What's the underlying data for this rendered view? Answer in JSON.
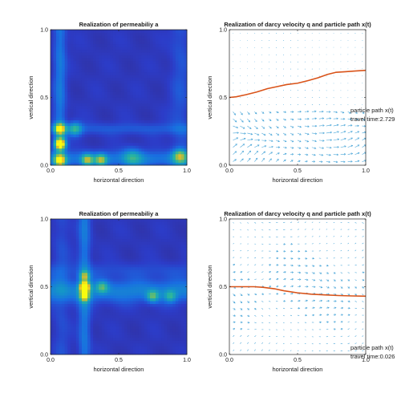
{
  "figure": {
    "background": "#ffffff"
  },
  "chart_data": [
    {
      "type": "heatmap",
      "title": "Realization of permeabiliy a",
      "xlabel": "horizontal direction",
      "ylabel": "vertical direction",
      "xlim": [
        0,
        1
      ],
      "ylim": [
        0,
        1
      ],
      "xticks": [
        "0.0",
        "0.5",
        "1.0"
      ],
      "yticks": [
        "0.0",
        "0.5",
        "1.0"
      ],
      "colormap": "parula",
      "background_level": 0.12,
      "hotspots": [
        {
          "x": 0.07,
          "y": 0.16,
          "intensity": 1.0,
          "spread": 0.028
        },
        {
          "x": 0.07,
          "y": 0.27,
          "intensity": 0.75,
          "spread": 0.028
        },
        {
          "x": 0.07,
          "y": 0.04,
          "intensity": 0.6,
          "spread": 0.028
        },
        {
          "x": 0.27,
          "y": 0.04,
          "intensity": 0.55,
          "spread": 0.03
        },
        {
          "x": 0.37,
          "y": 0.04,
          "intensity": 0.5,
          "spread": 0.03
        },
        {
          "x": 0.18,
          "y": 0.27,
          "intensity": 0.4,
          "spread": 0.035
        },
        {
          "x": 0.95,
          "y": 0.07,
          "intensity": 0.45,
          "spread": 0.035
        },
        {
          "x": 0.6,
          "y": 0.06,
          "intensity": 0.3,
          "spread": 0.05
        }
      ],
      "bands": [
        {
          "axis": "x",
          "at": 0.07,
          "intensity": 0.22,
          "spread": 0.03
        },
        {
          "axis": "y",
          "at": 0.05,
          "intensity": 0.22,
          "spread": 0.04
        },
        {
          "axis": "y",
          "at": 0.27,
          "intensity": 0.12,
          "spread": 0.03
        },
        {
          "axis": "x",
          "at": 0.95,
          "intensity": 0.1,
          "spread": 0.05
        }
      ]
    },
    {
      "type": "quiver",
      "title": "Realization of darcy velocity q and particle path x(t)",
      "xlabel": "horizontal direction",
      "ylabel": "vertical direction",
      "xlim": [
        0,
        1
      ],
      "ylim": [
        0,
        1
      ],
      "xticks": [
        "0.0",
        "0.5",
        "1.0"
      ],
      "yticks": [
        "0.0",
        "0.5",
        "1.0"
      ],
      "arrow_color": "#4aa6d8",
      "path_color": "#d95319",
      "path": {
        "x": [
          0.0,
          0.05,
          0.12,
          0.2,
          0.28,
          0.35,
          0.42,
          0.5,
          0.58,
          0.65,
          0.72,
          0.78,
          0.85,
          0.92,
          1.0
        ],
        "y": [
          0.5,
          0.505,
          0.52,
          0.54,
          0.565,
          0.58,
          0.595,
          0.605,
          0.625,
          0.645,
          0.67,
          0.685,
          0.69,
          0.695,
          0.7
        ]
      },
      "annotation_lines": [
        "particle path x(t)",
        "travel time:2.729"
      ],
      "flow": {
        "focus_y": 0.2,
        "focus_x": 0.15,
        "mag_low": 1.0,
        "mag_high": 0.25
      }
    },
    {
      "type": "heatmap",
      "title": "Realization of permeabiliy a",
      "xlabel": "horizontal direction",
      "ylabel": "vertical direction",
      "xlim": [
        0,
        1
      ],
      "ylim": [
        0,
        1
      ],
      "xticks": [
        "0.0",
        "0.5",
        "1.0"
      ],
      "yticks": [
        "0.0",
        "0.5",
        "1.0"
      ],
      "colormap": "parula",
      "background_level": 0.12,
      "hotspots": [
        {
          "x": 0.25,
          "y": 0.5,
          "intensity": 1.0,
          "spread": 0.025
        },
        {
          "x": 0.25,
          "y": 0.43,
          "intensity": 0.55,
          "spread": 0.025
        },
        {
          "x": 0.25,
          "y": 0.58,
          "intensity": 0.45,
          "spread": 0.025
        },
        {
          "x": 0.38,
          "y": 0.5,
          "intensity": 0.35,
          "spread": 0.03
        },
        {
          "x": 0.75,
          "y": 0.43,
          "intensity": 0.4,
          "spread": 0.03
        },
        {
          "x": 0.88,
          "y": 0.43,
          "intensity": 0.3,
          "spread": 0.03
        }
      ],
      "bands": [
        {
          "axis": "y",
          "at": 0.47,
          "intensity": 0.25,
          "spread": 0.06
        },
        {
          "axis": "x",
          "at": 0.25,
          "intensity": 0.22,
          "spread": 0.03
        },
        {
          "axis": "x",
          "at": 0.08,
          "intensity": 0.08,
          "spread": 0.04
        },
        {
          "axis": "y",
          "at": 0.62,
          "intensity": 0.08,
          "spread": 0.04
        }
      ]
    },
    {
      "type": "quiver",
      "title": "Realization of darcy velocity q and particle path x(t)",
      "xlabel": "horizontal direction",
      "ylabel": "vertical direction",
      "xlim": [
        0,
        1
      ],
      "ylim": [
        0,
        1
      ],
      "xticks": [
        "0.0",
        "0.5",
        "1.0"
      ],
      "yticks": [
        "0.0",
        "0.5",
        "1.0"
      ],
      "arrow_color": "#4aa6d8",
      "path_color": "#d95319",
      "path": {
        "x": [
          0.0,
          0.05,
          0.1,
          0.18,
          0.25,
          0.33,
          0.4,
          0.5,
          0.6,
          0.7,
          0.8,
          0.9,
          1.0
        ],
        "y": [
          0.5,
          0.5,
          0.5,
          0.5,
          0.495,
          0.485,
          0.47,
          0.455,
          0.445,
          0.44,
          0.435,
          0.432,
          0.43
        ]
      },
      "annotation_lines": [
        "particle path x(t)",
        "travel time:0.026"
      ],
      "flow": {
        "focus_y": 0.5,
        "focus_x": 0.5,
        "mag_low": 0.6,
        "mag_high": 0.6
      }
    }
  ]
}
